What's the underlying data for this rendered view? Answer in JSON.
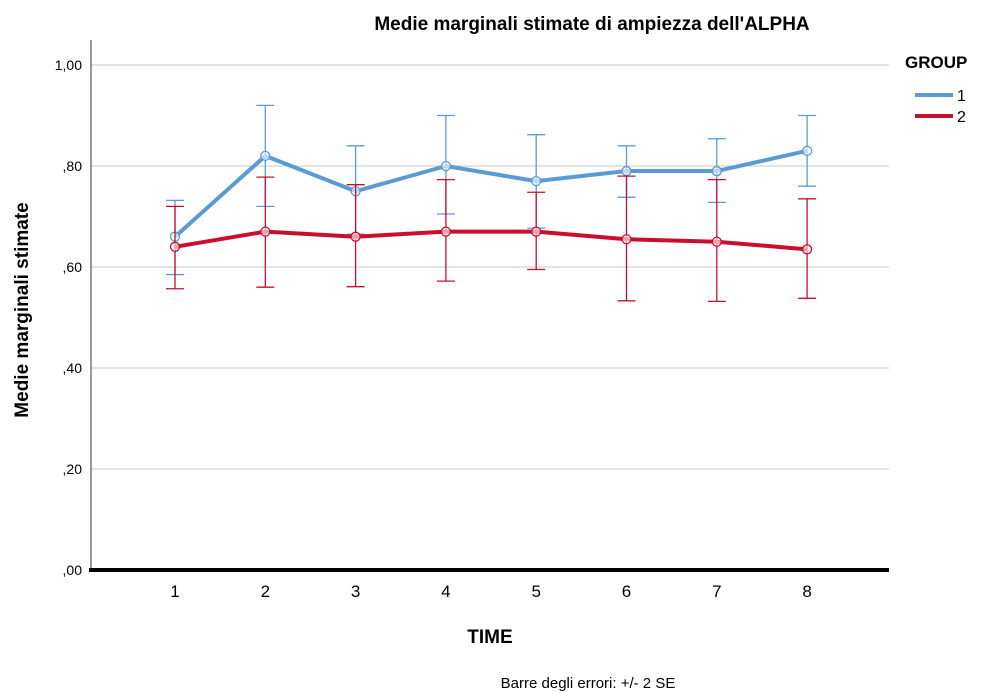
{
  "chart_data": {
    "type": "line",
    "title": "Medie marginali stimate di ampiezza dell'ALPHA",
    "xlabel": "TIME",
    "ylabel": "Medie marginali stimate",
    "categories": [
      "1",
      "2",
      "3",
      "4",
      "5",
      "6",
      "7",
      "8"
    ],
    "y_tick_labels": [
      ",00",
      ",20",
      ",40",
      ",60",
      ",80",
      "1,00"
    ],
    "y_tick_values": [
      0,
      0.2,
      0.4,
      0.6,
      0.8,
      1.0
    ],
    "ylim": [
      0,
      1.05
    ],
    "grid": "horizontal",
    "legend": {
      "title": "GROUP",
      "placement": "top-right"
    },
    "footnote": "Barre degli errori: +/- 2 SE",
    "series": [
      {
        "name": "1",
        "color": "#5b9bd5",
        "values": [
          0.66,
          0.82,
          0.75,
          0.8,
          0.77,
          0.79,
          0.79,
          0.83
        ],
        "err_low": [
          0.585,
          0.72,
          0.665,
          0.705,
          0.677,
          0.738,
          0.728,
          0.76
        ],
        "err_high": [
          0.732,
          0.92,
          0.84,
          0.9,
          0.862,
          0.84,
          0.854,
          0.9
        ]
      },
      {
        "name": "2",
        "color": "#c8102e",
        "values": [
          0.64,
          0.67,
          0.66,
          0.67,
          0.67,
          0.655,
          0.65,
          0.635
        ],
        "err_low": [
          0.557,
          0.56,
          0.561,
          0.572,
          0.595,
          0.533,
          0.532,
          0.538
        ],
        "err_high": [
          0.72,
          0.778,
          0.763,
          0.773,
          0.748,
          0.78,
          0.773,
          0.735
        ]
      }
    ]
  }
}
